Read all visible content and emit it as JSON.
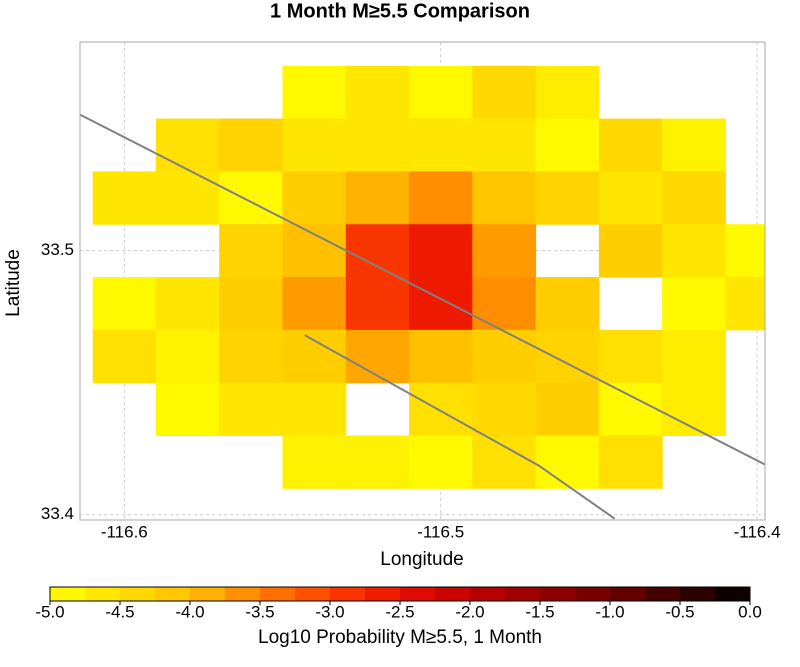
{
  "chart_data": {
    "type": "heatmap",
    "title": "1 Month M≥5.5 Comparison",
    "x_label": "Longitude",
    "y_label": "Latitude",
    "x": [
      -116.6,
      -116.58,
      -116.56,
      -116.54,
      -116.52,
      -116.5,
      -116.48,
      -116.46,
      -116.44,
      -116.42,
      -116.4
    ],
    "y": [
      33.56,
      33.54,
      33.52,
      33.5,
      33.48,
      33.46,
      33.44,
      33.42
    ],
    "z": [
      [
        null,
        null,
        null,
        -4.9,
        -4.6,
        -4.9,
        -4.4,
        -4.7,
        null,
        null,
        null
      ],
      [
        null,
        -4.5,
        -4.3,
        -4.6,
        -4.6,
        -4.6,
        -4.6,
        -4.9,
        -4.4,
        -4.8,
        null
      ],
      [
        -4.6,
        -4.6,
        -4.9,
        -4.2,
        -3.9,
        -3.6,
        -4.1,
        -4.3,
        -4.6,
        -4.4,
        null
      ],
      [
        null,
        null,
        -4.3,
        -4.0,
        -2.9,
        -2.6,
        -3.7,
        null,
        -4.2,
        -4.6,
        -4.9
      ],
      [
        -4.9,
        -4.6,
        -4.2,
        -3.7,
        -2.9,
        -2.6,
        -3.6,
        -4.2,
        null,
        -4.9,
        -4.6
      ],
      [
        -4.5,
        -4.8,
        -4.3,
        -4.2,
        -3.8,
        -4.0,
        -4.2,
        -4.3,
        -4.5,
        -4.7,
        null
      ],
      [
        null,
        -4.9,
        -4.6,
        -4.6,
        null,
        -4.5,
        -4.4,
        -4.2,
        -4.9,
        -4.7,
        null
      ],
      [
        null,
        null,
        null,
        -4.8,
        -4.8,
        -4.9,
        -4.5,
        -4.9,
        -4.5,
        null,
        null
      ]
    ],
    "xlim": [
      -116.614,
      -116.3975
    ],
    "ylim": [
      33.398,
      33.579
    ],
    "xticks": [
      -116.6,
      -116.5,
      -116.4
    ],
    "yticks": [
      33.4,
      33.5
    ],
    "grid": true,
    "faults": [
      {
        "color": "#808080",
        "x": [
          -116.614,
          -116.3975
        ],
        "y": [
          33.5515,
          33.419
        ]
      },
      {
        "color": "#808080",
        "x": [
          -116.543,
          -116.469,
          -116.445
        ],
        "y": [
          33.468,
          33.4186,
          33.3985
        ]
      }
    ],
    "colorbar": {
      "label": "Log10 Probability M≥5.5, 1 Month",
      "zlim": [
        -5,
        0
      ],
      "ticks": [
        {
          "value": -5,
          "label": "-5.0"
        },
        {
          "value": -4.5,
          "label": "-4.5"
        },
        {
          "value": -4,
          "label": "-4.0"
        },
        {
          "value": -3.5,
          "label": "-3.5"
        },
        {
          "value": -3,
          "label": "-3.0"
        },
        {
          "value": -2.5,
          "label": "-2.5"
        },
        {
          "value": -2,
          "label": "-2.0"
        },
        {
          "value": -1.5,
          "label": "-1.5"
        },
        {
          "value": -1,
          "label": "-1.0"
        },
        {
          "value": -0.5,
          "label": "-0.5"
        },
        {
          "value": 0,
          "label": "0.0"
        }
      ],
      "stops": [
        [
          -5,
          "#ffff00"
        ],
        [
          -4,
          "#ffc000"
        ],
        [
          -3,
          "#ff4000"
        ],
        [
          -2.5,
          "#e81000"
        ],
        [
          -2,
          "#c00000"
        ],
        [
          -1,
          "#700000"
        ],
        [
          0,
          "#000000"
        ]
      ]
    }
  }
}
